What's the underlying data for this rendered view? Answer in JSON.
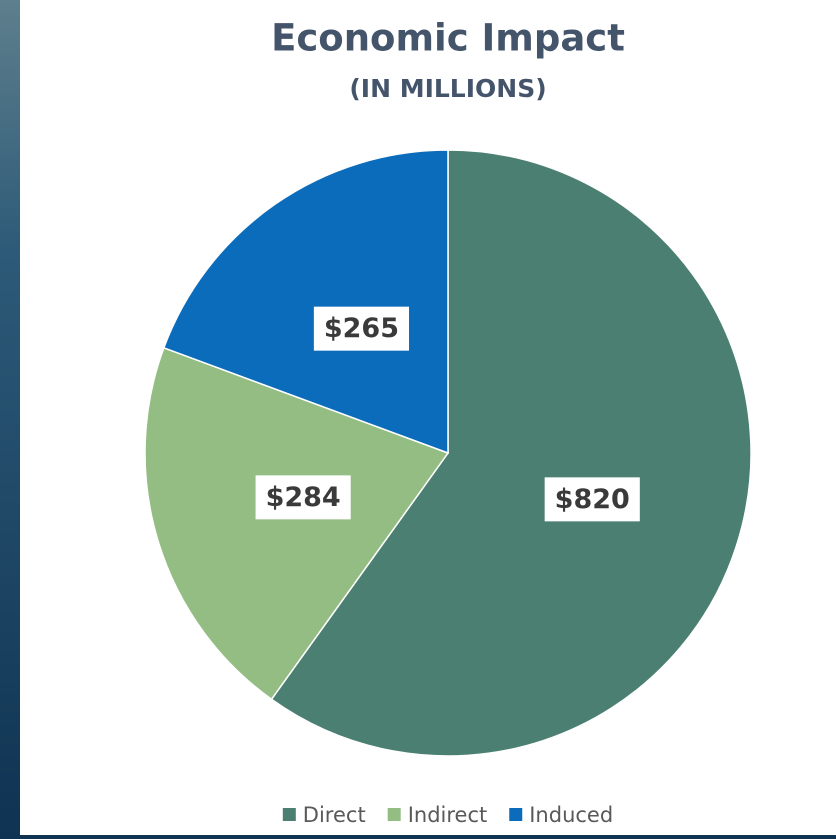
{
  "chart_data": {
    "type": "pie",
    "title": "Economic Impact",
    "subtitle": "(IN MILLIONS)",
    "categories": [
      "Direct",
      "Indirect",
      "Induced"
    ],
    "values": [
      820,
      284,
      265
    ],
    "value_labels": [
      "$820",
      "$284",
      "$265"
    ],
    "colors": [
      "#4b7f72",
      "#93bd82",
      "#0b6cbb"
    ],
    "legend": "bottom"
  }
}
